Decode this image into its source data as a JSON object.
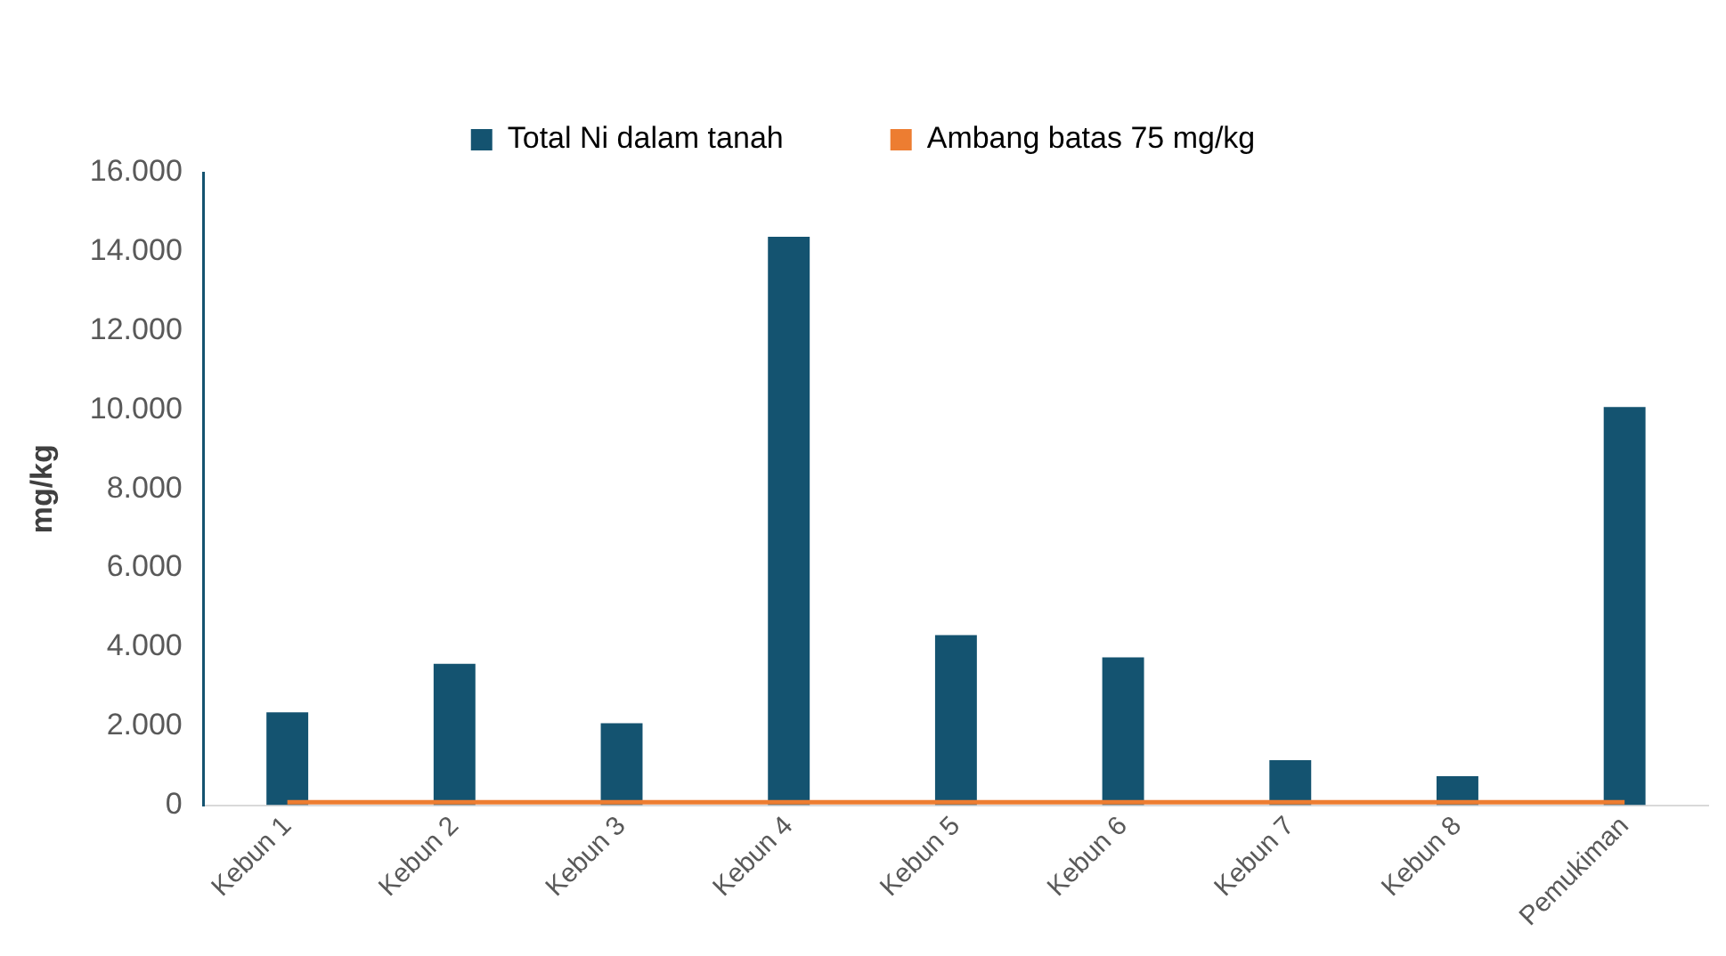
{
  "chart_data": {
    "type": "bar",
    "ylabel": "mg/kg",
    "categories": [
      "Kebun 1",
      "Kebun 2",
      "Kebun 3",
      "Kebun 4",
      "Kebun 5",
      "Kebun 6",
      "Kebun 7",
      "Kebun 8",
      "Pemukiman"
    ],
    "series": [
      {
        "name": "Total Ni dalam tanah",
        "color": "#145370",
        "values": [
          2350,
          3575,
          2070,
          14380,
          4300,
          3740,
          1140,
          730,
          10070
        ]
      },
      {
        "name": "Ambang batas 75 mg/kg",
        "type": "line",
        "color": "#ed7d31",
        "values": [
          75,
          75,
          75,
          75,
          75,
          75,
          75,
          75,
          75
        ]
      }
    ],
    "ylim": [
      0,
      16000
    ],
    "yticks": [
      {
        "value": 0,
        "label": "0"
      },
      {
        "value": 2000,
        "label": "2.000"
      },
      {
        "value": 4000,
        "label": "4.000"
      },
      {
        "value": 6000,
        "label": "6.000"
      },
      {
        "value": 8000,
        "label": "8.000"
      },
      {
        "value": 10000,
        "label": "10.000"
      },
      {
        "value": 12000,
        "label": "12.000"
      },
      {
        "value": 14000,
        "label": "14.000"
      },
      {
        "value": 16000,
        "label": "16.000"
      }
    ],
    "grid": false,
    "legend": "top",
    "marker": "none"
  }
}
